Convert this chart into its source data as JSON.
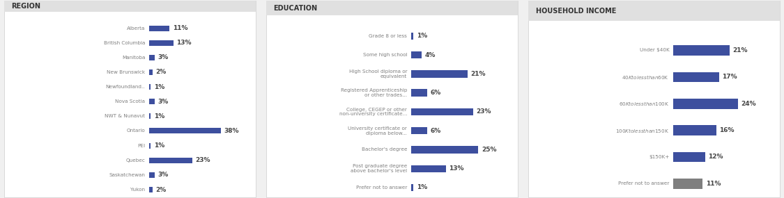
{
  "region": {
    "title": "REGION",
    "categories": [
      "Alberta",
      "British Columbia",
      "Manitoba",
      "New Brunswick",
      "Newfoundland..",
      "Nova Scotia",
      "NWT & Nunavut",
      "Ontario",
      "PEI",
      "Quebec",
      "Saskatchewan",
      "Yukon"
    ],
    "values": [
      11,
      13,
      3,
      2,
      1,
      3,
      1,
      38,
      1,
      23,
      3,
      2
    ],
    "bar_color": "#3d4f9e",
    "max_val": 40
  },
  "education": {
    "title": "EDUCATION",
    "categories": [
      "Grade 8 or less",
      "Some high school",
      "High School diploma or\nequivalent",
      "Registered Apprenticeship\nor other trades...",
      "College, CEGEP or other\nnon-university certificate...",
      "University certificate or\ndiploma below...",
      "Bachelor's degree",
      "Post graduate degree\nabove bachelor's level",
      "Prefer not to answer"
    ],
    "values": [
      1,
      4,
      21,
      6,
      23,
      6,
      25,
      13,
      1
    ],
    "bar_color": "#3d4f9e",
    "max_val": 28
  },
  "income": {
    "title": "HOUSEHOLD INCOME",
    "categories": [
      "Under $40K",
      "$40K to less than $60K",
      "$60K to less than $100K",
      "$100K to less than $150K",
      "$150K+",
      "Prefer not to answer"
    ],
    "values": [
      21,
      17,
      24,
      16,
      12,
      11
    ],
    "bar_colors": [
      "#3d4f9e",
      "#3d4f9e",
      "#3d4f9e",
      "#3d4f9e",
      "#3d4f9e",
      "#7f7f7f"
    ],
    "max_val": 28
  },
  "bg_color": "#f0f0f0",
  "panel_bg": "#ffffff",
  "header_bg": "#e0e0e0",
  "text_color": "#808080",
  "title_color": "#333333",
  "value_color": "#444444"
}
